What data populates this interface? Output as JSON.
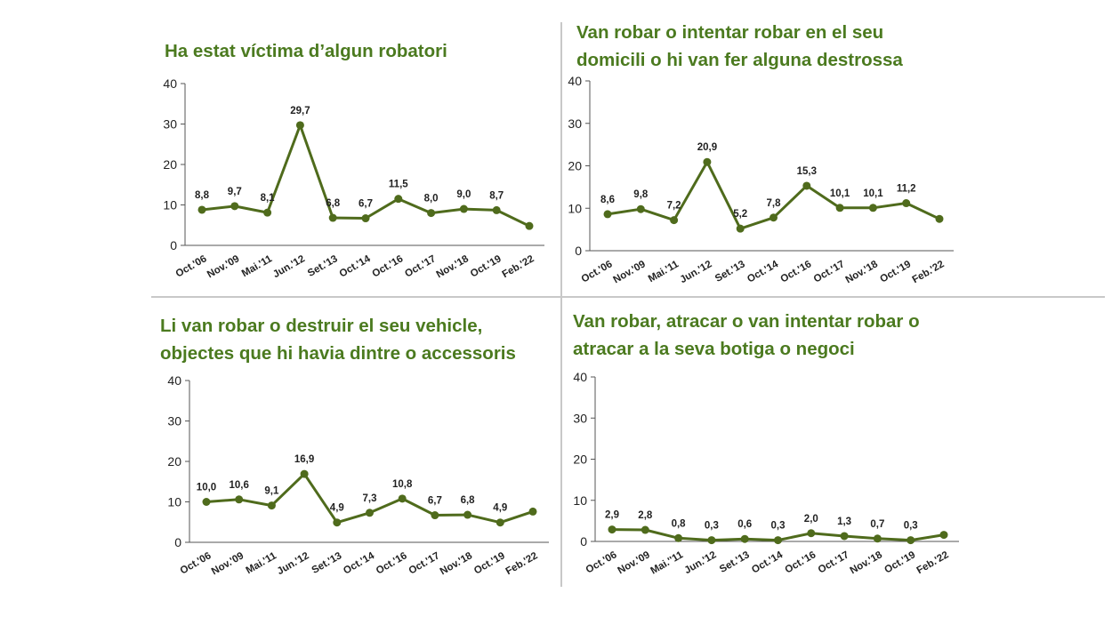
{
  "colors": {
    "title": "#4b7a1f",
    "series": "#4f6b1c",
    "axis": "#555555",
    "divider": "#c8c8c8"
  },
  "chart_data": [
    {
      "type": "line",
      "title_lines": [
        "Ha estat víctima d’algun robatori"
      ],
      "categories": [
        "Oct.'06",
        "Nov.'09",
        "Mai.'11",
        "Jun.'12",
        "Set.'13",
        "Oct.'14",
        "Oct.'16",
        "Oct.'17",
        "Nov.'18",
        "Oct.'19",
        "Feb.'22"
      ],
      "values": [
        8.8,
        9.7,
        8.1,
        29.7,
        6.8,
        6.7,
        11.5,
        8.0,
        9.0,
        8.7,
        4.8
      ],
      "value_labels": [
        "8,8",
        "9,7",
        "8,1",
        "29,7",
        "6,8",
        "6,7",
        "11,5",
        "8,0",
        "9,0",
        "8,7",
        ""
      ],
      "y_ticks": [
        "0",
        "10",
        "20",
        "30",
        "40"
      ],
      "ylim": [
        0,
        40
      ]
    },
    {
      "type": "line",
      "title_lines": [
        "Van robar o intentar robar en el seu",
        "domicili o hi van fer alguna destrossa"
      ],
      "categories": [
        "Oct.'06",
        "Nov.'09",
        "Mai.'11",
        "Jun.'12",
        "Set.'13",
        "Oct.'14",
        "Oct.'16",
        "Oct.'17",
        "Nov.'18",
        "Oct.'19",
        "Feb.'22"
      ],
      "values": [
        8.6,
        9.8,
        7.2,
        20.9,
        5.2,
        7.8,
        15.3,
        10.1,
        10.1,
        11.2,
        7.5
      ],
      "value_labels": [
        "8,6",
        "9,8",
        "7,2",
        "20,9",
        "5,2",
        "7,8",
        "15,3",
        "10,1",
        "10,1",
        "11,2",
        ""
      ],
      "y_ticks": [
        "0",
        "10",
        "20",
        "30",
        "40"
      ],
      "ylim": [
        0,
        40
      ]
    },
    {
      "type": "line",
      "title_lines": [
        "Li van robar o destruir el seu vehicle,",
        "objectes que hi havia dintre o accessoris"
      ],
      "categories": [
        "Oct.'06",
        "Nov.'09",
        "Mai.'11",
        "Jun.'12",
        "Set.'13",
        "Oct.'14",
        "Oct.'16",
        "Oct.'17",
        "Nov.'18",
        "Oct.'19",
        "Feb.'22"
      ],
      "values": [
        10.0,
        10.6,
        9.1,
        16.9,
        4.9,
        7.3,
        10.8,
        6.7,
        6.8,
        4.9,
        7.6
      ],
      "value_labels": [
        "10,0",
        "10,6",
        "9,1",
        "16,9",
        "4,9",
        "7,3",
        "10,8",
        "6,7",
        "6,8",
        "4,9",
        ""
      ],
      "y_ticks": [
        "0",
        "10",
        "20",
        "30",
        "40"
      ],
      "ylim": [
        0,
        40
      ]
    },
    {
      "type": "line",
      "title_lines": [
        "Van robar, atracar o van intentar robar  o",
        "atracar a la seva botiga o negoci"
      ],
      "categories": [
        "Oct.'06",
        "Nov.'09",
        "Mai.''11",
        "Jun.'12",
        "Set.'13",
        "Oct.'14",
        "Oct.'16",
        "Oct.'17",
        "Nov.'18",
        "Oct.'19",
        "Feb.'22"
      ],
      "values": [
        2.9,
        2.8,
        0.8,
        0.3,
        0.6,
        0.3,
        2.0,
        1.3,
        0.7,
        0.3,
        1.6
      ],
      "value_labels": [
        "2,9",
        "2,8",
        "0,8",
        "0,3",
        "0,6",
        "0,3",
        "2,0",
        "1,3",
        "0,7",
        "0,3",
        ""
      ],
      "y_ticks": [
        "0",
        "10",
        "20",
        "30",
        "40"
      ],
      "ylim": [
        0,
        40
      ]
    }
  ]
}
